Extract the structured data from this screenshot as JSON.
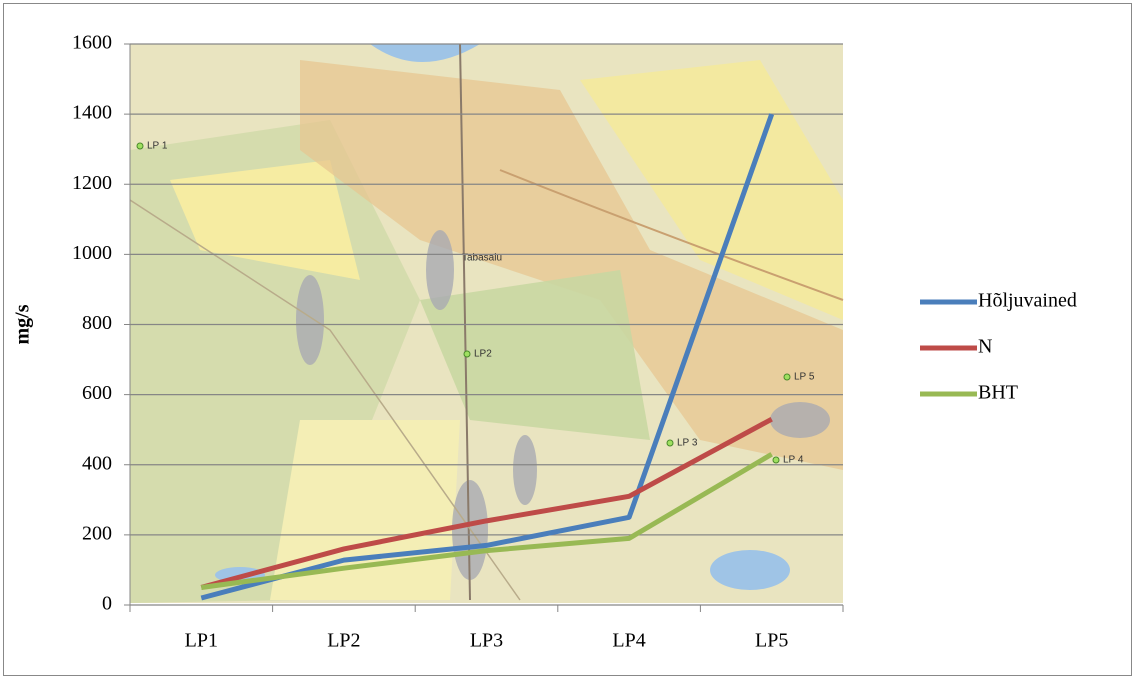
{
  "chart_data": {
    "type": "line",
    "y_label": "mg/s",
    "categories": [
      "LP1",
      "LP2",
      "LP3",
      "LP4",
      "LP5"
    ],
    "series": [
      {
        "name": "Hõljuvained",
        "color": "#4a7ebb",
        "values": [
          20,
          128,
          170,
          250,
          1400
        ]
      },
      {
        "name": "N",
        "color": "#be4b48",
        "values": [
          50,
          160,
          240,
          310,
          530
        ]
      },
      {
        "name": "BHT",
        "color": "#98b954",
        "values": [
          50,
          105,
          155,
          190,
          430
        ]
      }
    ],
    "ylim": [
      0,
      1600
    ],
    "yticks": [
      0,
      200,
      400,
      600,
      800,
      1000,
      1200,
      1400,
      1600
    ],
    "grid": true,
    "legend": "right",
    "map_labels": [
      "LP 1",
      "LP2",
      "LP 3",
      "LP 4",
      "LP 5",
      "Tabasalu"
    ]
  }
}
